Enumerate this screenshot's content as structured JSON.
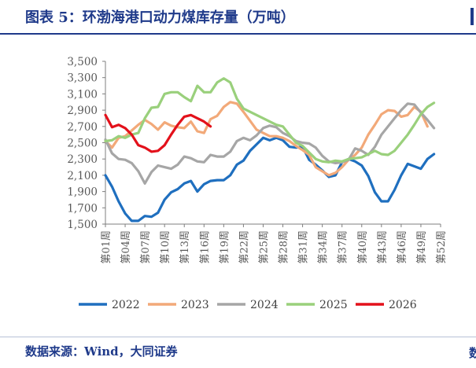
{
  "title": "图表 5：环渤海港口动力煤库存量（万吨）",
  "source": "数据来源：Wind，大同证券",
  "footer_edge": "数",
  "chart_data": {
    "type": "line",
    "yticks": [
      1500,
      1700,
      1900,
      2100,
      2300,
      2500,
      2700,
      2900,
      3100,
      3300,
      3500
    ],
    "ytick_labels": [
      "1,500",
      "1,700",
      "1,900",
      "2,100",
      "2,300",
      "2,500",
      "2,700",
      "2,900",
      "3,100",
      "3,300",
      "3,500"
    ],
    "ylim": [
      1500,
      3500
    ],
    "x_categories": [
      "第01周",
      "第02周",
      "第03周",
      "第04周",
      "第05周",
      "第06周",
      "第07周",
      "第08周",
      "第09周",
      "第10周",
      "第11周",
      "第12周",
      "第13周",
      "第14周",
      "第15周",
      "第16周",
      "第17周",
      "第18周",
      "第19周",
      "第20周",
      "第21周",
      "第22周",
      "第23周",
      "第24周",
      "第25周",
      "第26周",
      "第27周",
      "第28周",
      "第29周",
      "第30周",
      "第31周",
      "第32周",
      "第33周",
      "第34周",
      "第35周",
      "第36周",
      "第37周",
      "第38周",
      "第39周",
      "第40周",
      "第41周",
      "第42周",
      "第43周",
      "第44周",
      "第45周",
      "第46周",
      "第47周",
      "第48周",
      "第49周",
      "第50周",
      "第51周",
      "第52周"
    ],
    "x_tick_labels": [
      "第01周",
      "第04周",
      "第07周",
      "第10周",
      "第13周",
      "第16周",
      "第19周",
      "第22周",
      "第25周",
      "第28周",
      "第31周",
      "第34周",
      "第37周",
      "第40周",
      "第43周",
      "第46周",
      "第49周",
      "第52周"
    ],
    "legend_position": "bottom",
    "series": [
      {
        "name": "2022",
        "color": "#1f6fbf",
        "values": [
          2100,
          1960,
          1780,
          1630,
          1540,
          1540,
          1600,
          1590,
          1640,
          1800,
          1890,
          1930,
          2000,
          2030,
          1900,
          1990,
          2030,
          2040,
          2040,
          2100,
          2230,
          2280,
          2400,
          2480,
          2560,
          2530,
          2560,
          2530,
          2450,
          2440,
          2450,
          2290,
          2230,
          2160,
          2080,
          2100,
          2260,
          2300,
          2270,
          2220,
          2090,
          1890,
          1780,
          1780,
          1920,
          2100,
          2240,
          2210,
          2180,
          2300,
          2360,
          null
        ]
      },
      {
        "name": "2023",
        "color": "#f2a979",
        "values": [
          2520,
          2440,
          2560,
          2580,
          2650,
          2720,
          2780,
          2730,
          2660,
          2750,
          2710,
          2690,
          2680,
          2760,
          2640,
          2620,
          2790,
          2830,
          2940,
          3000,
          2980,
          2880,
          2770,
          2660,
          2620,
          2580,
          2580,
          2560,
          2520,
          2460,
          2410,
          2350,
          2200,
          2150,
          2100,
          2130,
          2200,
          2290,
          2350,
          2440,
          2600,
          2720,
          2850,
          2900,
          2890,
          2820,
          2840,
          2940,
          2880,
          2700,
          null,
          null
        ]
      },
      {
        "name": "2024",
        "color": "#a6a6a6",
        "values": [
          2540,
          2370,
          2300,
          2290,
          2250,
          2150,
          2000,
          2140,
          2220,
          2200,
          2180,
          2230,
          2330,
          2310,
          2270,
          2260,
          2350,
          2330,
          2330,
          2390,
          2520,
          2560,
          2530,
          2590,
          2680,
          2710,
          2690,
          2620,
          2580,
          2520,
          2500,
          2490,
          2440,
          2340,
          2270,
          2250,
          2260,
          2290,
          2430,
          2400,
          2350,
          2450,
          2600,
          2700,
          2800,
          2900,
          2980,
          2970,
          2870,
          2780,
          2680,
          null
        ]
      },
      {
        "name": "2025",
        "color": "#9ad07c",
        "values": [
          2520,
          2530,
          2580,
          2560,
          2600,
          2620,
          2800,
          2930,
          2940,
          3100,
          3120,
          3120,
          3060,
          3010,
          3200,
          3120,
          3120,
          3240,
          3290,
          3240,
          3040,
          2920,
          2880,
          2840,
          2800,
          2760,
          2720,
          2700,
          2600,
          2500,
          2460,
          2380,
          2300,
          2270,
          2260,
          2280,
          2270,
          2300,
          2310,
          2320,
          2360,
          2400,
          2360,
          2350,
          2400,
          2500,
          2600,
          2720,
          2850,
          2940,
          2990,
          null
        ]
      },
      {
        "name": "2026",
        "color": "#e3111b",
        "values": [
          2840,
          2690,
          2720,
          2680,
          2600,
          2470,
          2440,
          2390,
          2400,
          2470,
          2600,
          2720,
          2820,
          2840,
          2800,
          2760,
          2700
        ]
      }
    ]
  }
}
